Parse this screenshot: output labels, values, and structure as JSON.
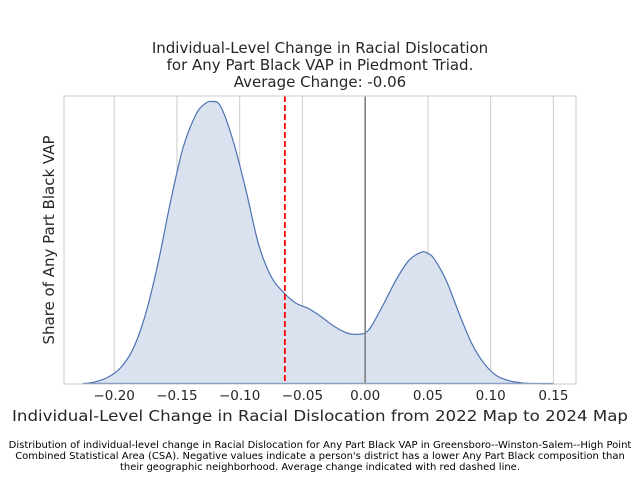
{
  "chart_data": {
    "type": "area",
    "title_lines": [
      "Individual-Level Change in Racial Dislocation",
      "for Any Part Black VAP in Piedmont Triad.",
      "Average Change: -0.06"
    ],
    "xlabel": "Individual-Level Change in Racial Dislocation from 2022 Map to 2024 Map",
    "ylabel": "Share of Any Part Black VAP",
    "caption": "Distribution of individual-level change in Racial Dislocation for Any Part Black VAP in Greensboro--Winston-Salem--High Point Combined Statistical Area (CSA). Negative values indicate a person's district has a lower Any Part Black composition than their geographic neighborhood. Average change indicated with red dashed line.",
    "xlim": [
      -0.24,
      0.168
    ],
    "ylim": [
      0,
      1.07
    ],
    "xticks": [
      -0.2,
      -0.15,
      -0.1,
      -0.05,
      0.0,
      0.05,
      0.1,
      0.15
    ],
    "xtick_labels": [
      "−0.20",
      "−0.15",
      "−0.10",
      "−0.05",
      "0.00",
      "0.05",
      "0.10",
      "0.15"
    ],
    "grid": true,
    "series": [
      {
        "x": [
          -0.225,
          -0.215,
          -0.205,
          -0.195,
          -0.185,
          -0.175,
          -0.165,
          -0.155,
          -0.145,
          -0.135,
          -0.128,
          -0.122,
          -0.115,
          -0.105,
          -0.095,
          -0.085,
          -0.075,
          -0.065,
          -0.055,
          -0.045,
          -0.035,
          -0.025,
          -0.015,
          -0.01,
          -0.005,
          0.0,
          0.005,
          0.015,
          0.025,
          0.035,
          0.045,
          0.05,
          0.055,
          0.065,
          0.075,
          0.085,
          0.095,
          0.105,
          0.115,
          0.125,
          0.135,
          0.145,
          0.15
        ],
        "y": [
          0.0,
          0.008,
          0.025,
          0.06,
          0.13,
          0.26,
          0.45,
          0.68,
          0.88,
          1.0,
          1.04,
          1.05,
          1.03,
          0.9,
          0.72,
          0.52,
          0.4,
          0.34,
          0.3,
          0.28,
          0.25,
          0.215,
          0.19,
          0.185,
          0.185,
          0.19,
          0.215,
          0.3,
          0.39,
          0.46,
          0.49,
          0.485,
          0.465,
          0.38,
          0.26,
          0.15,
          0.075,
          0.03,
          0.012,
          0.004,
          0.001,
          0.0,
          0.0
        ]
      }
    ],
    "mean_line": {
      "x": -0.064,
      "color": "#ff0000",
      "style": "dashed"
    },
    "zero_line": {
      "x": 0.0,
      "color": "#808080"
    },
    "fill_color": "#dae1ef",
    "line_color": "#4c72b0"
  }
}
